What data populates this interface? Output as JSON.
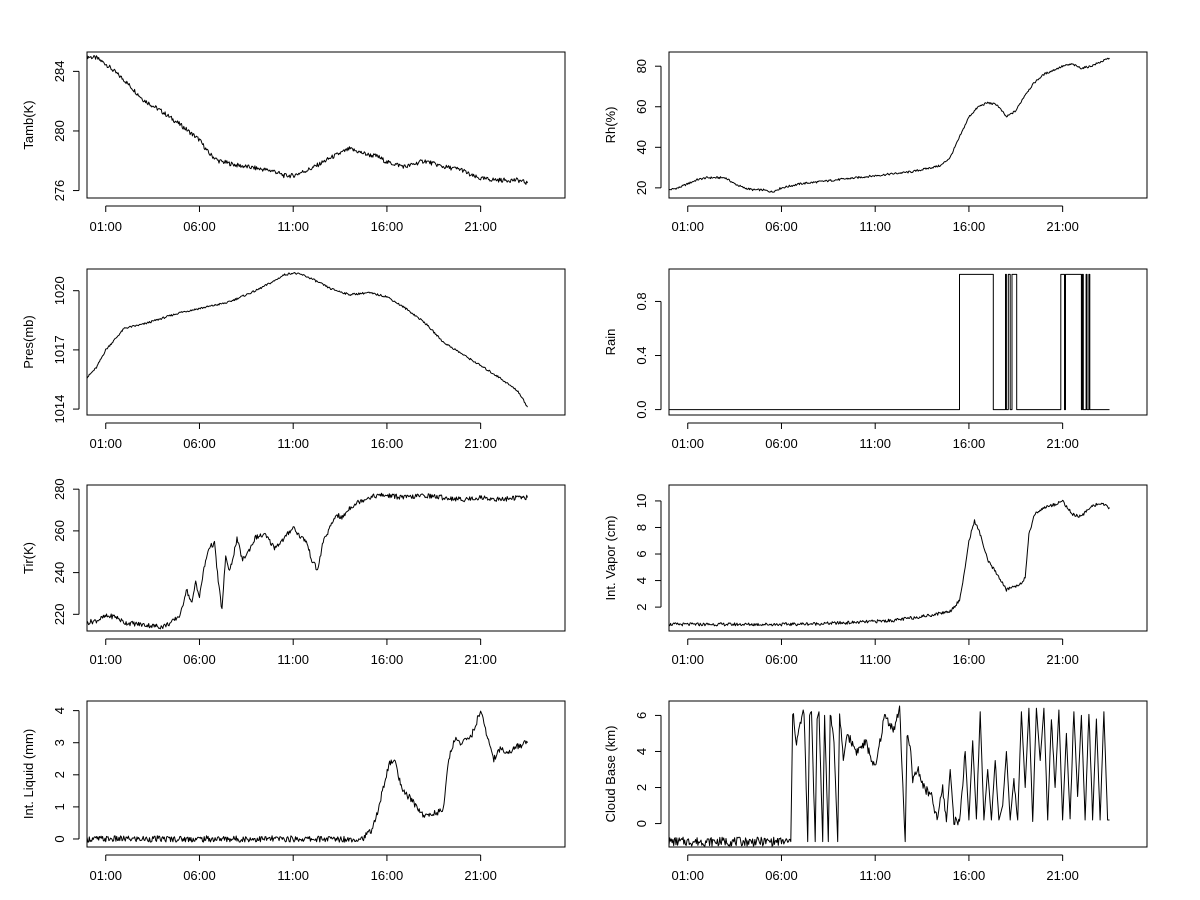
{
  "chart_data": [
    {
      "type": "line",
      "ylabel": "Tamb(K)",
      "xticks": [
        "01:00",
        "06:00",
        "11:00",
        "16:00",
        "21:00"
      ],
      "xtick_hours": [
        1,
        6,
        11,
        16,
        21
      ],
      "xlim": [
        0,
        25.5
      ],
      "ylim": [
        275.5,
        285.3
      ],
      "yticks": [
        276,
        280,
        284
      ],
      "ytick_labels": [
        "276",
        "280",
        "284"
      ],
      "noise": 0.15,
      "series": [
        {
          "x": [
            0,
            0.5,
            1,
            2,
            3,
            4,
            5,
            5.5,
            6,
            6.5,
            7,
            8,
            9,
            10,
            10.5,
            11,
            12,
            13,
            13.5,
            14,
            14.5,
            15,
            15.5,
            16,
            17,
            18,
            19,
            20,
            20.5,
            21,
            22,
            23,
            23.5
          ],
          "y": [
            285.0,
            284.9,
            284.5,
            283.4,
            282.1,
            281.3,
            280.4,
            279.9,
            279.4,
            278.5,
            278.0,
            277.7,
            277.5,
            277.3,
            277.0,
            277.0,
            277.5,
            278.2,
            278.5,
            278.8,
            278.6,
            278.4,
            278.3,
            277.9,
            277.6,
            278.0,
            277.6,
            277.4,
            277.0,
            276.8,
            276.7,
            276.7,
            276.5
          ]
        }
      ]
    },
    {
      "type": "line",
      "ylabel": "Rh(%)",
      "xticks": [
        "01:00",
        "06:00",
        "11:00",
        "16:00",
        "21:00"
      ],
      "xtick_hours": [
        1,
        6,
        11,
        16,
        21
      ],
      "xlim": [
        0,
        25.5
      ],
      "ylim": [
        15,
        87
      ],
      "yticks": [
        20,
        40,
        60,
        80
      ],
      "ytick_labels": [
        "20",
        "40",
        "60",
        "80"
      ],
      "noise": 0.5,
      "series": [
        {
          "x": [
            0,
            0.5,
            1,
            1.5,
            2,
            3,
            3.5,
            4,
            4.5,
            5,
            5.5,
            6,
            7,
            8,
            9,
            10,
            11,
            12,
            13,
            13.5,
            14,
            14.5,
            15,
            15.5,
            16,
            16.5,
            17,
            17.5,
            18,
            18.5,
            19,
            19.5,
            20,
            21,
            21.5,
            22,
            22.5,
            23,
            23.5
          ],
          "y": [
            19,
            20,
            22,
            24,
            25,
            25,
            22,
            20,
            19,
            19,
            18,
            20,
            22,
            23,
            24,
            25,
            26,
            27,
            28,
            29,
            30,
            31,
            35,
            45,
            55,
            60,
            62,
            61,
            55,
            58,
            66,
            72,
            76,
            80,
            81,
            79,
            80,
            82,
            84
          ]
        }
      ]
    },
    {
      "type": "line",
      "ylabel": "Pres(mb)",
      "xticks": [
        "01:00",
        "06:00",
        "11:00",
        "16:00",
        "21:00"
      ],
      "xtick_hours": [
        1,
        6,
        11,
        16,
        21
      ],
      "xlim": [
        0,
        25.5
      ],
      "ylim": [
        1013.7,
        1021.1
      ],
      "yticks": [
        1014,
        1017,
        1020
      ],
      "ytick_labels": [
        "1014",
        "1017",
        "1020"
      ],
      "noise": 0.05,
      "series": [
        {
          "x": [
            0,
            0.5,
            1,
            2,
            3,
            4,
            5,
            6,
            7,
            7.5,
            8,
            9,
            10,
            10.5,
            11,
            11.5,
            12,
            13,
            14,
            15,
            16,
            17,
            18,
            19,
            20,
            21,
            22,
            23,
            23.5
          ],
          "y": [
            1015.6,
            1016.1,
            1017.0,
            1018.1,
            1018.3,
            1018.6,
            1018.9,
            1019.1,
            1019.3,
            1019.4,
            1019.6,
            1020.0,
            1020.5,
            1020.8,
            1020.9,
            1020.8,
            1020.6,
            1020.1,
            1019.8,
            1019.9,
            1019.7,
            1019.1,
            1018.4,
            1017.4,
            1016.8,
            1016.2,
            1015.6,
            1014.9,
            1014.1
          ]
        }
      ]
    },
    {
      "type": "line",
      "ylabel": "Rain",
      "xticks": [
        "01:00",
        "06:00",
        "11:00",
        "16:00",
        "21:00"
      ],
      "xtick_hours": [
        1,
        6,
        11,
        16,
        21
      ],
      "xlim": [
        0,
        25.5
      ],
      "ylim": [
        -0.04,
        1.04
      ],
      "yticks": [
        0.0,
        0.4,
        0.8
      ],
      "ytick_labels": [
        "0.0",
        "0.4",
        "0.8"
      ],
      "noise": 0,
      "series": [
        {
          "x": [
            0,
            15.5,
            15.5,
            17.3,
            17.3,
            17.95,
            17.95,
            18.0,
            18.0,
            18.1,
            18.1,
            18.2,
            18.2,
            18.3,
            18.3,
            18.55,
            18.55,
            20.9,
            20.9,
            21.1,
            21.1,
            21.15,
            21.15,
            22.0,
            22.0,
            22.05,
            22.05,
            22.1,
            22.1,
            22.25,
            22.25,
            22.3,
            22.3,
            22.4,
            22.4,
            22.45,
            22.45,
            23.5
          ],
          "y": [
            0,
            0,
            1,
            1,
            0,
            0,
            1,
            1,
            0,
            0,
            1,
            1,
            0,
            0,
            1,
            1,
            0,
            0,
            1,
            1,
            0,
            0,
            1,
            1,
            0,
            0,
            1,
            1,
            0,
            0,
            1,
            1,
            0,
            0,
            1,
            1,
            0,
            0
          ]
        }
      ]
    },
    {
      "type": "line",
      "ylabel": "Tir(K)",
      "xticks": [
        "01:00",
        "06:00",
        "11:00",
        "16:00",
        "21:00"
      ],
      "xtick_hours": [
        1,
        6,
        11,
        16,
        21
      ],
      "xlim": [
        0,
        25.5
      ],
      "ylim": [
        212,
        282
      ],
      "yticks": [
        220,
        240,
        260,
        280
      ],
      "ytick_labels": [
        "220",
        "240",
        "260",
        "280"
      ],
      "noise": 1.2,
      "series": [
        {
          "x": [
            0,
            0.5,
            1,
            1.5,
            2,
            3,
            4,
            4.5,
            5,
            5.3,
            5.6,
            5.8,
            6,
            6.2,
            6.5,
            6.8,
            7,
            7.2,
            7.4,
            7.6,
            8,
            8.3,
            8.6,
            9,
            9.5,
            10,
            10.5,
            11,
            11.3,
            11.7,
            12,
            12.3,
            12.6,
            13,
            13.3,
            13.6,
            14,
            14.5,
            15,
            15.5,
            16,
            17,
            18,
            19,
            20,
            21,
            22,
            23,
            23.5
          ],
          "y": [
            216,
            217,
            219,
            219,
            216,
            215,
            214,
            216,
            220,
            232,
            225,
            236,
            228,
            240,
            252,
            254,
            236,
            222,
            248,
            240,
            256,
            246,
            250,
            257,
            258,
            252,
            256,
            262,
            258,
            255,
            246,
            241,
            255,
            262,
            268,
            266,
            271,
            274,
            276,
            277,
            277,
            276,
            277,
            276,
            275,
            276,
            275,
            276,
            276
          ]
        }
      ]
    },
    {
      "type": "line",
      "ylabel": "Int. Vapor (cm)",
      "xticks": [
        "01:00",
        "06:00",
        "11:00",
        "16:00",
        "21:00"
      ],
      "xtick_hours": [
        1,
        6,
        11,
        16,
        21
      ],
      "xlim": [
        0,
        25.5
      ],
      "ylim": [
        0.2,
        11.2
      ],
      "yticks": [
        2,
        4,
        6,
        8,
        10
      ],
      "ytick_labels": [
        "2",
        "4",
        "6",
        "8",
        "10"
      ],
      "noise": 0.12,
      "series": [
        {
          "x": [
            0,
            2,
            4,
            6,
            8,
            10,
            12,
            13,
            14,
            15,
            15.5,
            15.8,
            16,
            16.3,
            16.6,
            17,
            17.5,
            18,
            18.3,
            18.7,
            19,
            19.2,
            19.5,
            20,
            20.5,
            21,
            21.5,
            22,
            22.5,
            23,
            23.5
          ],
          "y": [
            0.7,
            0.7,
            0.7,
            0.7,
            0.75,
            0.85,
            1.0,
            1.2,
            1.4,
            1.7,
            2.5,
            5.0,
            7.0,
            8.5,
            7.5,
            5.5,
            4.5,
            3.3,
            3.5,
            3.7,
            4.2,
            7.5,
            9.0,
            9.5,
            9.7,
            10.0,
            9.0,
            8.8,
            9.6,
            9.8,
            9.5
          ]
        }
      ]
    },
    {
      "type": "line",
      "ylabel": "Int. Liquid (mm)",
      "xticks": [
        "01:00",
        "06:00",
        "11:00",
        "16:00",
        "21:00"
      ],
      "xtick_hours": [
        1,
        6,
        11,
        16,
        21
      ],
      "xlim": [
        0,
        25.5
      ],
      "ylim": [
        -0.25,
        4.3
      ],
      "yticks": [
        0,
        1,
        2,
        3,
        4
      ],
      "ytick_labels": [
        "0",
        "1",
        "2",
        "3",
        "4"
      ],
      "noise": 0.1,
      "series": [
        {
          "x": [
            0,
            14.5,
            14.8,
            15.2,
            15.5,
            15.8,
            16.1,
            16.4,
            16.8,
            17.2,
            17.6,
            18.0,
            18.5,
            19.0,
            19.3,
            19.6,
            20.0,
            20.5,
            21.0,
            21.3,
            21.7,
            22.0,
            22.5,
            23.0,
            23.5
          ],
          "y": [
            0,
            0,
            0.05,
            0.3,
            0.8,
            1.6,
            2.3,
            2.5,
            1.5,
            1.3,
            1.0,
            0.7,
            0.8,
            0.9,
            2.5,
            3.1,
            3.0,
            3.2,
            4.0,
            3.3,
            2.5,
            2.8,
            2.7,
            2.9,
            3.0
          ]
        }
      ]
    },
    {
      "type": "line",
      "ylabel": "Cloud Base (km)",
      "xticks": [
        "01:00",
        "06:00",
        "11:00",
        "16:00",
        "21:00"
      ],
      "xtick_hours": [
        1,
        6,
        11,
        16,
        21
      ],
      "xlim": [
        0,
        25.5
      ],
      "ylim": [
        -1.3,
        6.8
      ],
      "yticks": [
        0,
        2,
        4,
        6
      ],
      "ytick_labels": [
        "0",
        "2",
        "4",
        "6"
      ],
      "noise": 0.25,
      "series": [
        {
          "x": [
            0,
            6.5,
            6.6,
            6.8,
            7.0,
            7.2,
            7.4,
            7.5,
            7.6,
            7.8,
            7.9,
            8.0,
            8.2,
            8.3,
            8.5,
            8.6,
            8.8,
            9.0,
            9.1,
            9.3,
            9.5,
            10.0,
            10.5,
            11.0,
            11.5,
            12.0,
            12.3,
            12.6,
            12.7,
            12.9,
            13.0,
            13.3,
            13.6,
            14.0,
            14.3,
            14.6,
            14.8,
            15.0,
            15.2,
            15.5,
            15.8,
            16.0,
            16.2,
            16.4,
            16.6,
            16.8,
            17.0,
            17.2,
            17.4,
            17.6,
            17.8,
            18.0,
            18.2,
            18.4,
            18.6,
            18.8,
            19.0,
            19.2,
            19.4,
            19.6,
            19.8,
            20.0,
            20.2,
            20.4,
            20.6,
            20.8,
            21.0,
            21.2,
            21.4,
            21.6,
            21.8,
            22.0,
            22.2,
            22.4,
            22.6,
            22.8,
            23.0,
            23.2,
            23.4,
            23.5
          ],
          "y": [
            -1,
            -1,
            6.2,
            4.5,
            5.5,
            6.3,
            -1,
            6.0,
            6.3,
            -1,
            5.8,
            6.2,
            -1,
            6.0,
            -1,
            6.2,
            4.5,
            -1,
            6.0,
            3.5,
            5.0,
            4.0,
            4.5,
            3.0,
            6.0,
            5.2,
            6.4,
            -1,
            4.8,
            4.0,
            2.5,
            3.0,
            2.0,
            1.5,
            0.2,
            2.0,
            0.1,
            3.0,
            0.2,
            0.1,
            4.0,
            0.2,
            4.6,
            0.2,
            6.2,
            0.2,
            3.0,
            0.2,
            3.5,
            0.2,
            1.0,
            4.0,
            0.2,
            2.5,
            0.2,
            6.2,
            2.0,
            6.4,
            0.2,
            6.4,
            3.5,
            6.4,
            0.2,
            6.0,
            2.0,
            6.3,
            0.2,
            5.0,
            0.2,
            6.2,
            1.5,
            6.0,
            0.2,
            6.2,
            0.2,
            5.8,
            0.2,
            6.2,
            0.2,
            0.2
          ]
        }
      ]
    }
  ]
}
